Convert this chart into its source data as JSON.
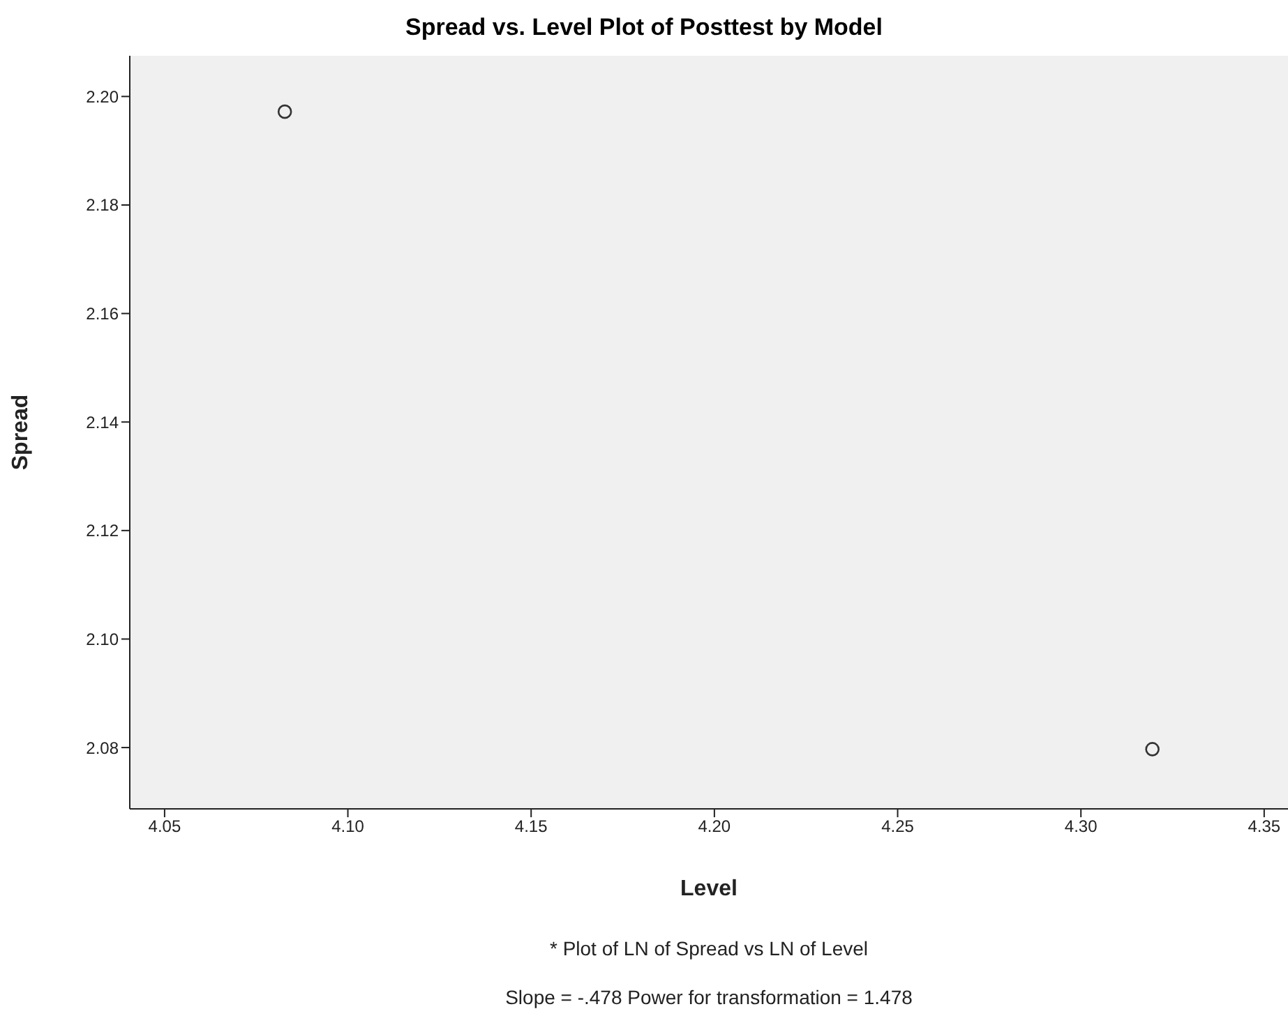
{
  "chart_data": {
    "type": "scatter",
    "title": "Spread vs. Level Plot of Posttest by Model",
    "xlabel": "Level",
    "ylabel": "Spread",
    "x": [
      4.0828,
      4.3195
    ],
    "series": [
      {
        "color": "#333333",
        "values": [
          2.1972,
          2.0797
        ]
      }
    ],
    "marker": "circle",
    "xlim": [
      4.0405,
      4.3565
    ],
    "ylim": [
      2.0687,
      2.2075
    ],
    "xticks": [
      {
        "value": 4.05,
        "label": "4.05"
      },
      {
        "value": 4.1,
        "label": "4.10"
      },
      {
        "value": 4.15,
        "label": "4.15"
      },
      {
        "value": 4.2,
        "label": "4.20"
      },
      {
        "value": 4.25,
        "label": "4.25"
      },
      {
        "value": 4.3,
        "label": "4.30"
      },
      {
        "value": 4.35,
        "label": "4.35"
      }
    ],
    "yticks": [
      {
        "value": 2.08,
        "label": "2.08"
      },
      {
        "value": 2.1,
        "label": "2.10"
      },
      {
        "value": 2.12,
        "label": "2.12"
      },
      {
        "value": 2.14,
        "label": "2.14"
      },
      {
        "value": 2.16,
        "label": "2.16"
      },
      {
        "value": 2.18,
        "label": "2.18"
      },
      {
        "value": 2.2,
        "label": "2.20"
      }
    ],
    "grid": false,
    "legend": false,
    "annotations": [
      "* Plot of LN of Spread vs LN of Level",
      "Slope = -.478 Power for transformation = 1.478"
    ]
  }
}
